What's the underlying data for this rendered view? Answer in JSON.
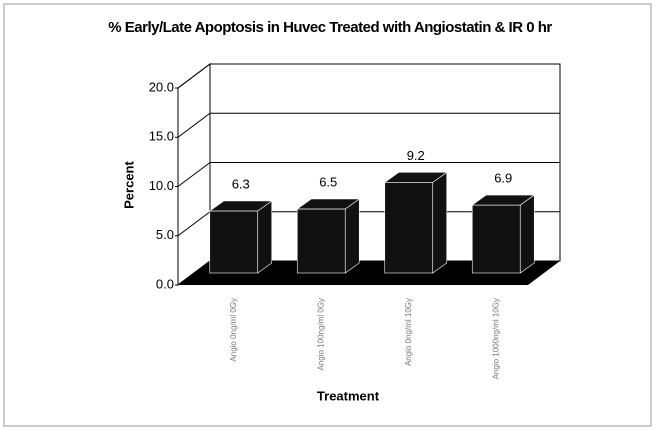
{
  "chart_data": {
    "type": "bar3d",
    "title": "% Early/Late Apoptosis in Huvec Treated with Angiostatin & IR  0 hr",
    "x_label": "Treatment",
    "y_label": "Percent",
    "categories": [
      "Angio 0ng/ml 0Gy",
      "Angio 100ng/ml 0Gy",
      "Angio 0ng/ml 10Gy",
      "Angio 1000ng/ml 10Gy"
    ],
    "values": [
      6.3,
      6.5,
      9.2,
      6.9
    ],
    "color": "#111111",
    "ylim": [
      0,
      20
    ],
    "yticks": [
      {
        "value": 0,
        "label": "0.0"
      },
      {
        "value": 5,
        "label": "5.0"
      },
      {
        "value": 10,
        "label": "10.0"
      },
      {
        "value": 15,
        "label": "15.0"
      },
      {
        "value": 20,
        "label": "20.0"
      }
    ],
    "grid": true
  }
}
